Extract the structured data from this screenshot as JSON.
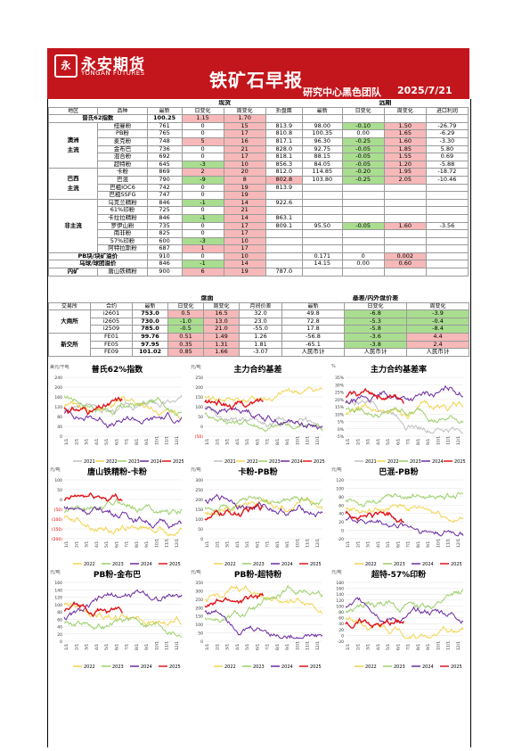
{
  "header": {
    "logo_mark": "永",
    "logo_cn": "永安期货",
    "logo_en": "YONGAN FUTURES",
    "title": "铁矿石早报",
    "team": "研究中心黑色团队",
    "date": "2025/7/21"
  },
  "spot": {
    "section_spot": "现货",
    "section_far": "远期",
    "headers": [
      "地区",
      "品种",
      "最新",
      "日变化",
      "周变化",
      "折盘面",
      "最新",
      "日变化",
      "周变化",
      "进口利润"
    ],
    "platts_label": "普氏62指数",
    "platts": [
      "100.25",
      "1.15",
      "1.70"
    ],
    "groups": [
      {
        "region": "澳洲\n主流",
        "rows": [
          {
            "name": "纽曼粉",
            "v": [
              "761",
              "0",
              "15",
              "813.9",
              "98.00",
              "-0.10",
              "1.50",
              "-26.79"
            ]
          },
          {
            "name": "PB粉",
            "v": [
              "765",
              "0",
              "17",
              "810.8",
              "100.35",
              "0.00",
              "1.65",
              "-6.29"
            ]
          },
          {
            "name": "麦克粉",
            "v": [
              "748",
              "5",
              "16",
              "817.1",
              "96.30",
              "-0.25",
              "1.60",
              "-3.30"
            ]
          },
          {
            "name": "金布巴",
            "v": [
              "736",
              "0",
              "21",
              "828.0",
              "92.75",
              "-0.05",
              "1.85",
              "5.80"
            ]
          },
          {
            "name": "混合粉",
            "v": [
              "692",
              "0",
              "17",
              "818.1",
              "88.15",
              "-0.05",
              "1.55",
              "0.69"
            ]
          },
          {
            "name": "超特粉",
            "v": [
              "645",
              "-3",
              "10",
              "856.3",
              "84.05",
              "-0.05",
              "1.20",
              "-5.88"
            ]
          }
        ]
      },
      {
        "region": "巴西\n主流",
        "rows": [
          {
            "name": "卡粉",
            "v": [
              "869",
              "2",
              "20",
              "812.0",
              "114.85",
              "-0.20",
              "1.95",
              "-18.72"
            ]
          },
          {
            "name": "巴混",
            "v": [
              "790",
              "-9",
              "8",
              "802.8",
              "103.80",
              "-0.25",
              "2.05",
              "-10.46"
            ]
          },
          {
            "name": "巴粗IOC6",
            "v": [
              "742",
              "0",
              "19",
              "813.9",
              "",
              "",
              "",
              ""
            ]
          },
          {
            "name": "巴粗SSFG",
            "v": [
              "747",
              "0",
              "19",
              "",
              "",
              "",
              "",
              ""
            ]
          }
        ]
      },
      {
        "region": "非主流",
        "rows": [
          {
            "name": "乌克兰精粉",
            "v": [
              "846",
              "-1",
              "14",
              "922.6",
              "",
              "",
              "",
              ""
            ]
          },
          {
            "name": "61%印粉",
            "v": [
              "725",
              "0",
              "21",
              "",
              "",
              "",
              "",
              ""
            ]
          },
          {
            "name": "卡拉拉精粉",
            "v": [
              "846",
              "-1",
              "14",
              "863.1",
              "",
              "",
              "",
              ""
            ]
          },
          {
            "name": "罗伊山粉",
            "v": [
              "735",
              "0",
              "17",
              "809.1",
              "95.50",
              "-0.05",
              "1.60",
              "-3.56"
            ]
          },
          {
            "name": "南非粉",
            "v": [
              "825",
              "0",
              "17",
              "",
              "",
              "",
              "",
              ""
            ]
          },
          {
            "name": "57%印粉",
            "v": [
              "600",
              "-3",
              "10",
              "",
              "",
              "",
              "",
              ""
            ]
          },
          {
            "name": "阿特拉斯粉",
            "v": [
              "687",
              "1",
              "17",
              "",
              "",
              "",
              "",
              ""
            ]
          }
        ]
      }
    ],
    "extra": [
      {
        "label": "PB块/块矿溢价",
        "v": [
          "910",
          "0",
          "10",
          "",
          "0.171",
          "0",
          "0.002",
          ""
        ]
      },
      {
        "label": "乌球/球团溢价",
        "v": [
          "846",
          "-1",
          "14",
          "",
          "14.15",
          "0.00",
          "0.60",
          ""
        ]
      },
      {
        "label": "内矿",
        "name": "唐山铁精粉",
        "v": [
          "900",
          "6",
          "19",
          "787.0",
          "",
          "",
          "",
          ""
        ]
      }
    ]
  },
  "futures": {
    "section_disk": "盘面",
    "section_basis": "基差/内外盘价差",
    "headers": [
      "交易所",
      "合约",
      "最新",
      "日变化",
      "周变化",
      "月间价差",
      "最新",
      "日变化",
      "周变化"
    ],
    "groups": [
      {
        "exchange": "大商所",
        "rows": [
          {
            "c": "i2601",
            "v": [
              "753.0",
              "0.5",
              "16.5",
              "32.0",
              "49.8",
              "-6.8",
              "-3.9"
            ]
          },
          {
            "c": "i2605",
            "v": [
              "730.0",
              "-1.0",
              "13.0",
              "23.0",
              "72.8",
              "-5.3",
              "-0.4"
            ]
          },
          {
            "c": "i2509",
            "v": [
              "785.0",
              "-0.5",
              "21.0",
              "-55.0",
              "17.8",
              "-5.8",
              "-8.4"
            ]
          }
        ]
      },
      {
        "exchange": "新交所",
        "rows": [
          {
            "c": "FE01",
            "v": [
              "99.76",
              "0.51",
              "1.49",
              "1.26",
              "-56.8",
              "-3.6",
              "4.4"
            ]
          },
          {
            "c": "FE05",
            "v": [
              "97.95",
              "0.35",
              "1.31",
              "1.81",
              "-65.1",
              "-3.8",
              "2.4"
            ]
          },
          {
            "c": "FE09",
            "v": [
              "101.02",
              "0.85",
              "1.66",
              "-3.07",
              "人民币计",
              "人民币计",
              "人民币计"
            ]
          }
        ]
      }
    ]
  },
  "colors": {
    "brand": "#c3161c",
    "pos": "#f6b8b8",
    "neg": "#a9dd8f",
    "y2022": "#f2d34c",
    "y2023": "#9ccf6a",
    "y2024": "#6a2aa0",
    "y2025": "#e0141a",
    "y2021": "#c0c0c0"
  },
  "chart_data": [
    {
      "type": "line",
      "title": "普氏62%指数",
      "unit": "美元/干吨",
      "ylim": [
        0,
        240
      ],
      "yticks": [
        "240",
        "200",
        "160",
        "120",
        "80",
        "40",
        "0"
      ],
      "xticks": [
        "1/1",
        "2/1",
        "3/1",
        "4/1",
        "5/1",
        "6/1",
        "7/1",
        "8/1",
        "9/1",
        "10/1",
        "11/1",
        "12/1"
      ],
      "legend": [
        "2021",
        "2022",
        "2023",
        "2024",
        "2025"
      ]
    },
    {
      "type": "line",
      "title": "主力合约基差",
      "unit": "元/吨",
      "ylim": [
        -50,
        250
      ],
      "yticks": [
        "250",
        "200",
        "150",
        "100",
        "50",
        "0",
        "(50)"
      ],
      "xticks": [
        "1/1",
        "2/1",
        "3/1",
        "4/1",
        "5/1",
        "6/1",
        "7/1",
        "8/1",
        "9/1",
        "10/1",
        "11/1",
        "12/1"
      ],
      "legend": [
        "2021",
        "2022",
        "2023",
        "2024",
        "2025"
      ]
    },
    {
      "type": "line",
      "title": "主力合约基差率",
      "unit": "%",
      "ylim": [
        -5,
        35
      ],
      "yticks": [
        "35%",
        "30%",
        "25%",
        "20%",
        "15%",
        "10%",
        "5%",
        "0%",
        "-5%"
      ],
      "xticks": [
        "1/1",
        "2/1",
        "3/1",
        "4/1",
        "5/1",
        "6/1",
        "7/1",
        "8/1",
        "9/1",
        "10/1",
        "11/1",
        "12/1"
      ],
      "legend": [
        "2021",
        "2022",
        "2023",
        "2024",
        "2025"
      ]
    },
    {
      "type": "line",
      "title": "唐山铁精粉-卡粉",
      "unit": "元/吨",
      "ylim": [
        -200,
        100
      ],
      "yticks": [
        "100",
        "50",
        "0",
        "(50)",
        "(100)",
        "(150)",
        "(200)"
      ],
      "xticks": [
        "1/1",
        "2/1",
        "3/1",
        "4/1",
        "5/1",
        "6/1",
        "7/1",
        "8/1",
        "9/1",
        "10/1",
        "11/1",
        "12/1"
      ],
      "legend": [
        "2022",
        "2023",
        "2024",
        "2025"
      ]
    },
    {
      "type": "line",
      "title": "卡粉-PB粉",
      "unit": "元/吨",
      "ylim": [
        0,
        300
      ],
      "yticks": [
        "300",
        "250",
        "200",
        "150",
        "100",
        "50",
        "0"
      ],
      "xticks": [
        "1/1",
        "2/1",
        "3/1",
        "4/1",
        "5/1",
        "6/1",
        "7/1",
        "8/1",
        "9/1",
        "10/1",
        "11/1",
        "12/1"
      ],
      "legend": [
        "2022",
        "2023",
        "2024",
        "2025"
      ]
    },
    {
      "type": "line",
      "title": "巴混-PB粉",
      "unit": "元/吨",
      "ylim": [
        -20,
        120
      ],
      "yticks": [
        "120",
        "100",
        "80",
        "60",
        "40",
        "20",
        "0",
        "-20"
      ],
      "xticks": [
        "1/1",
        "2/1",
        "3/1",
        "4/1",
        "5/1",
        "6/1",
        "7/1",
        "8/1",
        "9/1",
        "10/1",
        "11/1",
        "12/1"
      ],
      "legend": [
        "2022",
        "2023",
        "2024",
        "2025"
      ]
    },
    {
      "type": "line",
      "title": "PB粉-金布巴",
      "unit": "元/吨",
      "ylim": [
        0,
        160
      ],
      "yticks": [
        "160",
        "140",
        "120",
        "100",
        "80",
        "60",
        "40",
        "20",
        "0"
      ],
      "xticks": [
        "1/1",
        "2/1",
        "3/1",
        "4/1",
        "5/1",
        "6/1",
        "7/1",
        "8/1",
        "9/1",
        "10/1",
        "11/1",
        "12/1"
      ],
      "legend": [
        "2022",
        "2023",
        "2024",
        "2025"
      ]
    },
    {
      "type": "line",
      "title": "PB粉-超特粉",
      "unit": "元/吨",
      "ylim": [
        0,
        350
      ],
      "yticks": [
        "350",
        "300",
        "250",
        "200",
        "150",
        "100",
        "50",
        "0"
      ],
      "xticks": [
        "1/1",
        "2/1",
        "3/1",
        "4/1",
        "5/1",
        "6/1",
        "7/1",
        "8/1",
        "9/1",
        "10/1",
        "11/1",
        "12/1"
      ],
      "legend": [
        "2022",
        "2023",
        "2024",
        "2025"
      ]
    },
    {
      "type": "line",
      "title": "超特-57%印粉",
      "unit": "元/吨",
      "ylim": [
        -20,
        180
      ],
      "yticks": [
        "180",
        "160",
        "140",
        "120",
        "100",
        "80",
        "60",
        "40",
        "20",
        "0",
        "-20"
      ],
      "xticks": [
        "1/1",
        "2/1",
        "3/1",
        "4/1",
        "5/1",
        "6/1",
        "7/1",
        "8/1",
        "9/1",
        "10/1",
        "11/1",
        "12/1"
      ],
      "legend": [
        "2022",
        "2023",
        "2024",
        "2025"
      ]
    }
  ]
}
